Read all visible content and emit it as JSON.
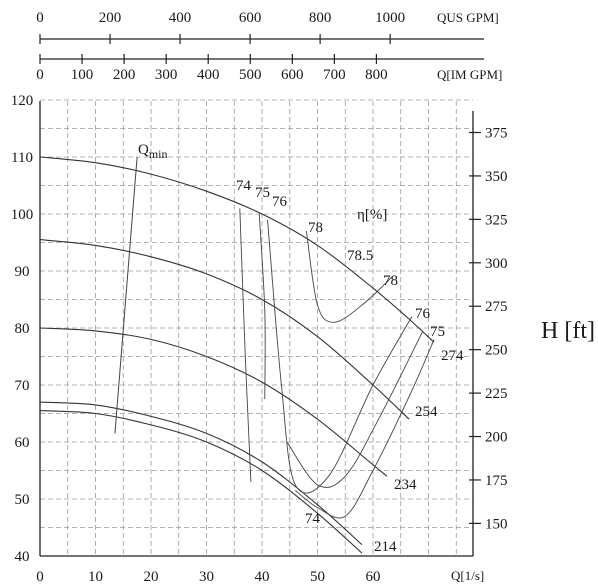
{
  "chart_data": {
    "type": "line",
    "axes": {
      "flow_ls": {
        "label": "Q[1/s]",
        "ticks": [
          0,
          10,
          20,
          30,
          40,
          50,
          60
        ],
        "range": [
          0,
          75
        ]
      },
      "flow_us_gpm": {
        "label": "QUS GPM]",
        "ticks": [
          0,
          200,
          400,
          600,
          800,
          1000
        ]
      },
      "flow_im_gpm": {
        "label": "Q[IM GPM]",
        "ticks": [
          0,
          100,
          200,
          300,
          400,
          500,
          600,
          700,
          800
        ]
      },
      "head_m": {
        "ticks": [
          40,
          50,
          60,
          70,
          80,
          90,
          100,
          110,
          120
        ],
        "range": [
          40,
          120
        ]
      },
      "head_ft": {
        "label": "H [ft]",
        "ticks": [
          150,
          175,
          200,
          225,
          250,
          275,
          300,
          325,
          350,
          375
        ]
      }
    },
    "head_curves": [
      {
        "name": "274",
        "x": [
          0,
          10,
          20,
          30,
          40,
          50,
          60,
          66,
          71
        ],
        "y": [
          110,
          109,
          107,
          104,
          100,
          94.5,
          87,
          82,
          77.5
        ]
      },
      {
        "name": "254",
        "x": [
          0,
          10,
          20,
          30,
          40,
          50,
          60,
          66.5
        ],
        "y": [
          95.5,
          94.5,
          92.5,
          89.5,
          85,
          78.5,
          70,
          64
        ]
      },
      {
        "name": "234",
        "x": [
          0,
          10,
          20,
          30,
          40,
          50,
          60,
          62.5
        ],
        "y": [
          80,
          79.5,
          78,
          75,
          70.5,
          64,
          56,
          54
        ]
      },
      {
        "name": "214",
        "x": [
          0,
          10,
          20,
          30,
          40,
          50,
          58
        ],
        "y": [
          67,
          66.5,
          64.5,
          61.5,
          56.5,
          49,
          42
        ]
      }
    ],
    "head_curves_second_line": [
      {
        "x": [
          0,
          10,
          20,
          30,
          40,
          50,
          58
        ],
        "y": [
          65.5,
          65,
          63,
          60,
          55,
          47.5,
          40.5
        ]
      }
    ],
    "efficiency_label": "η[%]",
    "qmin_label": "Q",
    "qmin_subscript": "min",
    "qmin_line": {
      "x": [
        13.5,
        17.5
      ],
      "y": [
        61.5,
        110
      ]
    },
    "efficiency_contours": [
      {
        "label": "74",
        "points": [
          [
            36,
            101
          ],
          [
            37,
            75
          ],
          [
            38,
            53
          ]
        ]
      },
      {
        "label": "75",
        "points": [
          [
            39.5,
            100
          ],
          [
            40.5,
            83
          ],
          [
            40.5,
            67.5
          ]
        ]
      },
      {
        "label": "76",
        "points": [
          [
            41,
            99
          ],
          [
            43.5,
            70
          ],
          [
            46,
            52.5
          ],
          [
            52,
            54
          ],
          [
            60,
            70
          ],
          [
            67,
            82
          ]
        ]
      },
      {
        "label": "78",
        "points": [
          [
            48,
            97
          ],
          [
            50,
            84
          ],
          [
            53,
            81
          ],
          [
            58,
            84
          ],
          [
            63.5,
            89
          ]
        ]
      },
      {
        "label": "74",
        "points": [
          [
            46,
            51.5
          ],
          [
            50,
            48.5
          ],
          [
            55,
            47
          ],
          [
            60,
            55
          ],
          [
            67,
            69
          ],
          [
            71,
            78
          ]
        ]
      },
      {
        "label": "76",
        "points": [
          [
            44.5,
            60
          ],
          [
            50,
            52.5
          ],
          [
            55,
            54
          ],
          [
            61,
            64
          ],
          [
            69,
            79.5
          ]
        ]
      }
    ],
    "contour_labels": [
      "74",
      "75",
      "76",
      "78",
      "78.5",
      "78",
      "76",
      "75",
      "74"
    ],
    "grid": true
  }
}
